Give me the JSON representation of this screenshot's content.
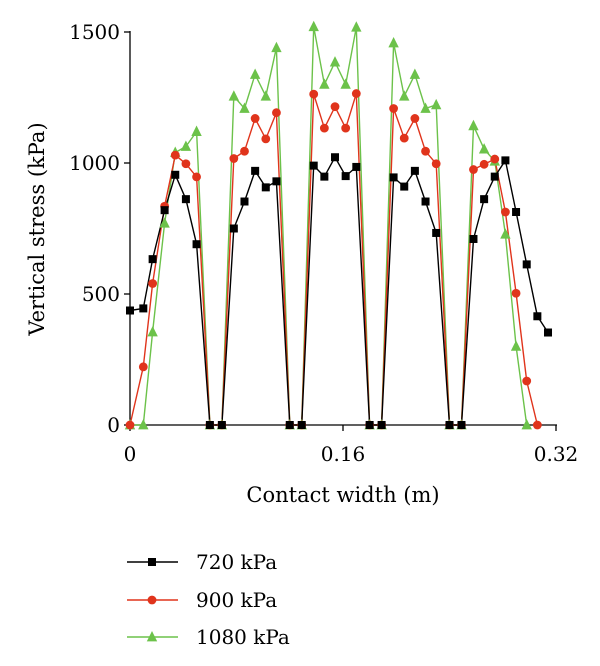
{
  "chart_data": {
    "type": "line",
    "xlabel": "Contact width (m)",
    "ylabel": "Vertical stress (kPa)",
    "xlim": [
      0,
      0.32
    ],
    "ylim": [
      0,
      1500
    ],
    "xticks": [
      0,
      0.16,
      0.32
    ],
    "xtick_labels": [
      "0",
      "0.16",
      "0.32"
    ],
    "yticks": [
      0,
      500,
      1000,
      1500
    ],
    "ytick_labels": [
      "0",
      "500",
      "1000",
      "1500"
    ],
    "grid": false,
    "legend_position": "bottom-left",
    "series": [
      {
        "name": "720 kPa",
        "color": "#000000",
        "marker": "square",
        "points": [
          [
            0.0,
            437
          ],
          [
            0.01,
            445
          ],
          [
            0.017,
            633
          ],
          [
            0.026,
            820
          ],
          [
            0.034,
            955
          ],
          [
            0.042,
            862
          ],
          [
            0.05,
            690
          ],
          [
            0.06,
            0
          ],
          [
            0.069,
            0
          ],
          [
            0.078,
            750
          ],
          [
            0.086,
            853
          ],
          [
            0.094,
            970
          ],
          [
            0.102,
            907
          ],
          [
            0.11,
            930
          ],
          [
            0.12,
            0
          ],
          [
            0.129,
            0
          ],
          [
            0.138,
            990
          ],
          [
            0.146,
            948
          ],
          [
            0.154,
            1022
          ],
          [
            0.162,
            950
          ],
          [
            0.17,
            985
          ],
          [
            0.18,
            0
          ],
          [
            0.189,
            0
          ],
          [
            0.198,
            945
          ],
          [
            0.206,
            910
          ],
          [
            0.214,
            970
          ],
          [
            0.222,
            853
          ],
          [
            0.23,
            733
          ],
          [
            0.24,
            0
          ],
          [
            0.249,
            0
          ],
          [
            0.258,
            710
          ],
          [
            0.266,
            862
          ],
          [
            0.274,
            948
          ],
          [
            0.282,
            1010
          ],
          [
            0.29,
            813
          ],
          [
            0.298,
            613
          ],
          [
            0.306,
            415
          ],
          [
            0.314,
            353
          ]
        ]
      },
      {
        "name": "900 kPa",
        "color": "#e0341c",
        "marker": "circle",
        "points": [
          [
            0.0,
            0
          ],
          [
            0.01,
            222
          ],
          [
            0.017,
            540
          ],
          [
            0.026,
            835
          ],
          [
            0.034,
            1030
          ],
          [
            0.042,
            997
          ],
          [
            0.05,
            947
          ],
          [
            0.06,
            0
          ],
          [
            0.069,
            0
          ],
          [
            0.078,
            1017
          ],
          [
            0.086,
            1045
          ],
          [
            0.094,
            1170
          ],
          [
            0.102,
            1092
          ],
          [
            0.11,
            1192
          ],
          [
            0.12,
            0
          ],
          [
            0.129,
            0
          ],
          [
            0.138,
            1263
          ],
          [
            0.146,
            1133
          ],
          [
            0.154,
            1215
          ],
          [
            0.162,
            1133
          ],
          [
            0.17,
            1265
          ],
          [
            0.18,
            0
          ],
          [
            0.189,
            0
          ],
          [
            0.198,
            1208
          ],
          [
            0.206,
            1095
          ],
          [
            0.214,
            1170
          ],
          [
            0.222,
            1045
          ],
          [
            0.23,
            997
          ],
          [
            0.24,
            0
          ],
          [
            0.249,
            0
          ],
          [
            0.258,
            975
          ],
          [
            0.266,
            995
          ],
          [
            0.274,
            1015
          ],
          [
            0.282,
            813
          ],
          [
            0.29,
            503
          ],
          [
            0.298,
            168
          ],
          [
            0.306,
            0
          ]
        ]
      },
      {
        "name": "1080 kPa",
        "color": "#6cc24a",
        "marker": "triangle",
        "points": [
          [
            0.0,
            0
          ],
          [
            0.01,
            0
          ],
          [
            0.017,
            355
          ],
          [
            0.026,
            770
          ],
          [
            0.034,
            1040
          ],
          [
            0.042,
            1063
          ],
          [
            0.05,
            1120
          ],
          [
            0.06,
            0
          ],
          [
            0.069,
            0
          ],
          [
            0.078,
            1255
          ],
          [
            0.086,
            1208
          ],
          [
            0.094,
            1338
          ],
          [
            0.102,
            1255
          ],
          [
            0.11,
            1440
          ],
          [
            0.12,
            0
          ],
          [
            0.129,
            0
          ],
          [
            0.138,
            1520
          ],
          [
            0.146,
            1300
          ],
          [
            0.154,
            1385
          ],
          [
            0.162,
            1300
          ],
          [
            0.17,
            1518
          ],
          [
            0.18,
            0
          ],
          [
            0.189,
            0
          ],
          [
            0.198,
            1458
          ],
          [
            0.206,
            1255
          ],
          [
            0.214,
            1338
          ],
          [
            0.222,
            1208
          ],
          [
            0.23,
            1222
          ],
          [
            0.24,
            0
          ],
          [
            0.249,
            0
          ],
          [
            0.258,
            1142
          ],
          [
            0.266,
            1053
          ],
          [
            0.274,
            1007
          ],
          [
            0.282,
            728
          ],
          [
            0.29,
            300
          ],
          [
            0.298,
            0
          ]
        ]
      }
    ]
  }
}
